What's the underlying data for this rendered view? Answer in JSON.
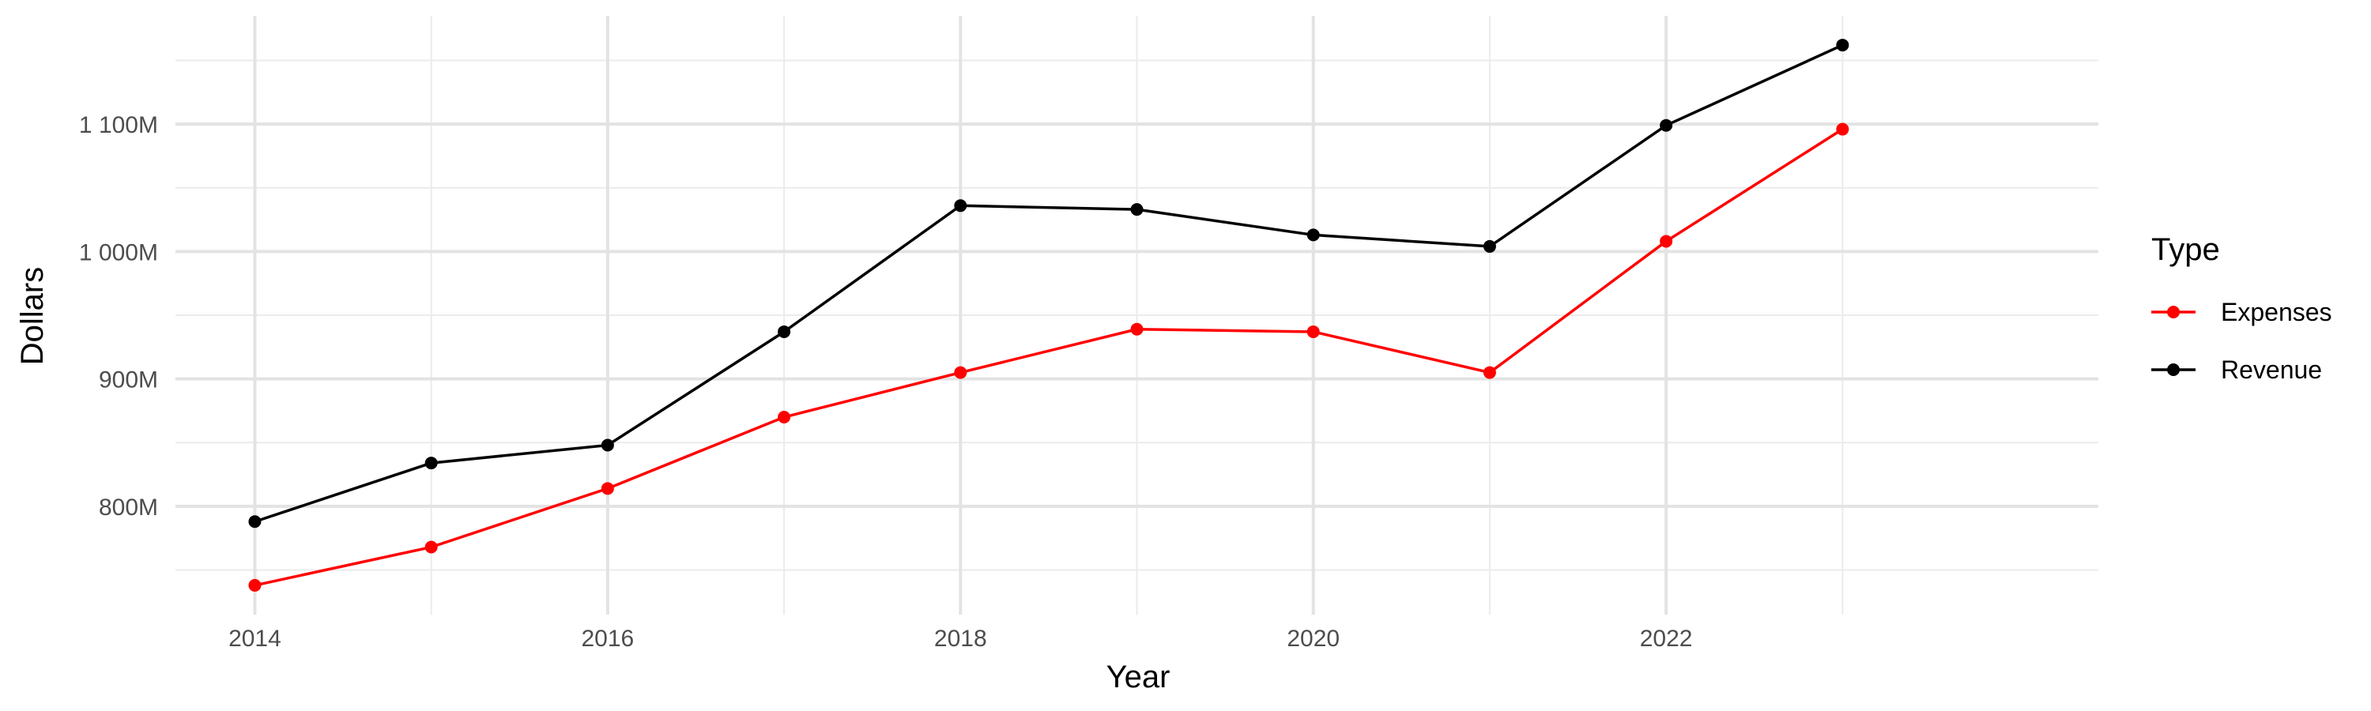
{
  "chart_data": {
    "type": "line",
    "title": "",
    "xlabel": "Year",
    "ylabel": "Dollars",
    "x": [
      2014,
      2015,
      2016,
      2017,
      2018,
      2019,
      2020,
      2021,
      2022,
      2023
    ],
    "x_ticks": [
      2014,
      2016,
      2018,
      2020,
      2022
    ],
    "x_tick_labels": [
      "2014",
      "2016",
      "2018",
      "2020",
      "2022"
    ],
    "xlim": [
      2013.55,
      2024.45
    ],
    "y_ticks": [
      800,
      900,
      1000,
      1100
    ],
    "y_tick_labels": [
      "800M",
      "900M",
      "1 000M",
      "1 100M"
    ],
    "y_minor_ticks": [
      750,
      850,
      950,
      1050,
      1150
    ],
    "y_unit": "millions of dollars",
    "ylim": [
      715,
      1185
    ],
    "grid": true,
    "legend": {
      "title": "Type",
      "position": "right"
    },
    "series": [
      {
        "name": "Expenses",
        "color": "#ff0000",
        "values": [
          738,
          768,
          814,
          870,
          905,
          939,
          937,
          905,
          1008,
          1096
        ]
      },
      {
        "name": "Revenue",
        "color": "#000000",
        "values": [
          788,
          834,
          848,
          937,
          1036,
          1033,
          1013,
          1004,
          1099,
          1162
        ]
      }
    ]
  }
}
